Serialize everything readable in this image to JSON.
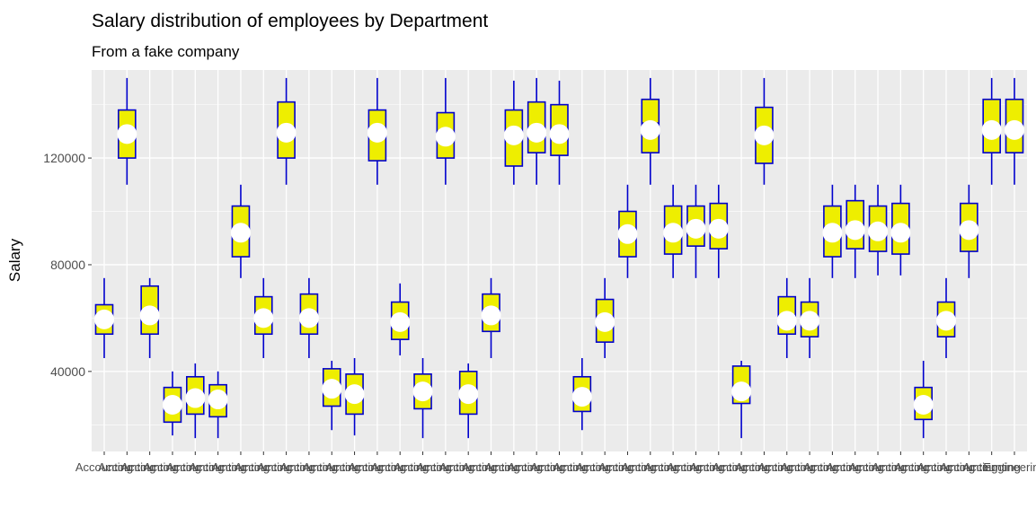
{
  "chart_data": {
    "type": "boxplot",
    "title": "Salary distribution of employees by Department",
    "subtitle": "From a fake company",
    "xlabel": "",
    "ylabel": "Salary",
    "ylim": [
      10000,
      153000
    ],
    "yticks": [
      40000,
      80000,
      120000
    ],
    "grid": true,
    "legend": "none",
    "colors": {
      "panel": "#ebebeb",
      "grid": "#ffffff",
      "box_fill": "#eeee00",
      "box_line": "#0000cd",
      "mean_point": "#ffffff",
      "text": "#000000",
      "axis_text": "#4d4d4d"
    },
    "categories": [
      "Accounting",
      "Accounting",
      "Accounting",
      "Accounting",
      "Accounting",
      "Accounting",
      "Accounting",
      "Accounting",
      "Accounting",
      "Accounting",
      "Accounting",
      "Accounting",
      "Accounting",
      "Accounting",
      "Accounting",
      "Accounting",
      "Accounting",
      "Accounting",
      "Accounting",
      "Accounting",
      "Accounting",
      "Accounting",
      "Accounting",
      "Accounting",
      "Accounting",
      "Accounting",
      "Accounting",
      "Accounting",
      "Accounting",
      "Accounting",
      "Accounting",
      "Accounting",
      "Accounting",
      "Accounting",
      "Accounting",
      "Accounting",
      "Accounting",
      "Accounting",
      "Accounting",
      "Accounting",
      "Engineering"
    ],
    "boxes": [
      {
        "min": 45000,
        "q1": 54000,
        "median": 60000,
        "q3": 65000,
        "max": 75000,
        "mean": 59500
      },
      {
        "min": 110000,
        "q1": 120000,
        "median": 130000,
        "q3": 138000,
        "max": 150000,
        "mean": 129000
      },
      {
        "min": 45000,
        "q1": 54000,
        "median": 60000,
        "q3": 72000,
        "max": 75000,
        "mean": 61000
      },
      {
        "min": 16000,
        "q1": 21000,
        "median": 26000,
        "q3": 34000,
        "max": 40000,
        "mean": 27500
      },
      {
        "min": 15000,
        "q1": 24000,
        "median": 30000,
        "q3": 38000,
        "max": 43000,
        "mean": 30000
      },
      {
        "min": 15000,
        "q1": 23000,
        "median": 30000,
        "q3": 35000,
        "max": 40000,
        "mean": 29500
      },
      {
        "min": 75000,
        "q1": 83000,
        "median": 90000,
        "q3": 102000,
        "max": 110000,
        "mean": 92000
      },
      {
        "min": 45000,
        "q1": 54000,
        "median": 60000,
        "q3": 68000,
        "max": 75000,
        "mean": 60000
      },
      {
        "min": 110000,
        "q1": 120000,
        "median": 130000,
        "q3": 141000,
        "max": 150000,
        "mean": 129500
      },
      {
        "min": 45000,
        "q1": 54000,
        "median": 60000,
        "q3": 69000,
        "max": 75000,
        "mean": 60000
      },
      {
        "min": 18000,
        "q1": 27000,
        "median": 34000,
        "q3": 41000,
        "max": 44000,
        "mean": 33500
      },
      {
        "min": 16000,
        "q1": 24000,
        "median": 31000,
        "q3": 39000,
        "max": 45000,
        "mean": 31500
      },
      {
        "min": 110000,
        "q1": 119000,
        "median": 130000,
        "q3": 138000,
        "max": 150000,
        "mean": 129500
      },
      {
        "min": 46000,
        "q1": 52000,
        "median": 58000,
        "q3": 66000,
        "max": 73000,
        "mean": 58500
      },
      {
        "min": 15000,
        "q1": 26000,
        "median": 33000,
        "q3": 39000,
        "max": 45000,
        "mean": 32500
      },
      {
        "min": 110000,
        "q1": 120000,
        "median": 128000,
        "q3": 137000,
        "max": 150000,
        "mean": 128000
      },
      {
        "min": 15000,
        "q1": 24000,
        "median": 32000,
        "q3": 40000,
        "max": 43000,
        "mean": 31500
      },
      {
        "min": 45000,
        "q1": 55000,
        "median": 61000,
        "q3": 69000,
        "max": 75000,
        "mean": 61000
      },
      {
        "min": 110000,
        "q1": 117000,
        "median": 129000,
        "q3": 138000,
        "max": 149000,
        "mean": 128500
      },
      {
        "min": 110000,
        "q1": 122000,
        "median": 130000,
        "q3": 141000,
        "max": 150000,
        "mean": 129500
      },
      {
        "min": 110000,
        "q1": 121000,
        "median": 128000,
        "q3": 140000,
        "max": 149000,
        "mean": 129000
      },
      {
        "min": 18000,
        "q1": 25000,
        "median": 31000,
        "q3": 38000,
        "max": 45000,
        "mean": 30500
      },
      {
        "min": 45000,
        "q1": 51000,
        "median": 59000,
        "q3": 67000,
        "max": 75000,
        "mean": 58500
      },
      {
        "min": 75000,
        "q1": 83000,
        "median": 90000,
        "q3": 100000,
        "max": 110000,
        "mean": 91500
      },
      {
        "min": 110000,
        "q1": 122000,
        "median": 133000,
        "q3": 142000,
        "max": 150000,
        "mean": 130500
      },
      {
        "min": 75000,
        "q1": 84000,
        "median": 92000,
        "q3": 102000,
        "max": 110000,
        "mean": 92000
      },
      {
        "min": 75000,
        "q1": 87000,
        "median": 95000,
        "q3": 102000,
        "max": 110000,
        "mean": 93500
      },
      {
        "min": 75000,
        "q1": 86000,
        "median": 95000,
        "q3": 103000,
        "max": 110000,
        "mean": 93500
      },
      {
        "min": 15000,
        "q1": 28000,
        "median": 34000,
        "q3": 42000,
        "max": 44000,
        "mean": 32500
      },
      {
        "min": 110000,
        "q1": 118000,
        "median": 128000,
        "q3": 139000,
        "max": 150000,
        "mean": 128500
      },
      {
        "min": 45000,
        "q1": 54000,
        "median": 60000,
        "q3": 68000,
        "max": 75000,
        "mean": 59000
      },
      {
        "min": 45000,
        "q1": 53000,
        "median": 60000,
        "q3": 66000,
        "max": 75000,
        "mean": 59000
      },
      {
        "min": 75000,
        "q1": 83000,
        "median": 91000,
        "q3": 102000,
        "max": 110000,
        "mean": 92000
      },
      {
        "min": 75000,
        "q1": 86000,
        "median": 95000,
        "q3": 104000,
        "max": 110000,
        "mean": 93000
      },
      {
        "min": 76000,
        "q1": 85000,
        "median": 93000,
        "q3": 102000,
        "max": 110000,
        "mean": 92500
      },
      {
        "min": 76000,
        "q1": 84000,
        "median": 92000,
        "q3": 103000,
        "max": 110000,
        "mean": 92000
      },
      {
        "min": 15000,
        "q1": 22000,
        "median": 27000,
        "q3": 34000,
        "max": 44000,
        "mean": 27500
      },
      {
        "min": 45000,
        "q1": 53000,
        "median": 59000,
        "q3": 66000,
        "max": 75000,
        "mean": 59000
      },
      {
        "min": 75000,
        "q1": 85000,
        "median": 93000,
        "q3": 103000,
        "max": 110000,
        "mean": 93000
      },
      {
        "min": 110000,
        "q1": 122000,
        "median": 130000,
        "q3": 142000,
        "max": 150000,
        "mean": 130500
      },
      {
        "min": 110000,
        "q1": 122000,
        "median": 130000,
        "q3": 142000,
        "max": 150000,
        "mean": 130500
      }
    ]
  }
}
